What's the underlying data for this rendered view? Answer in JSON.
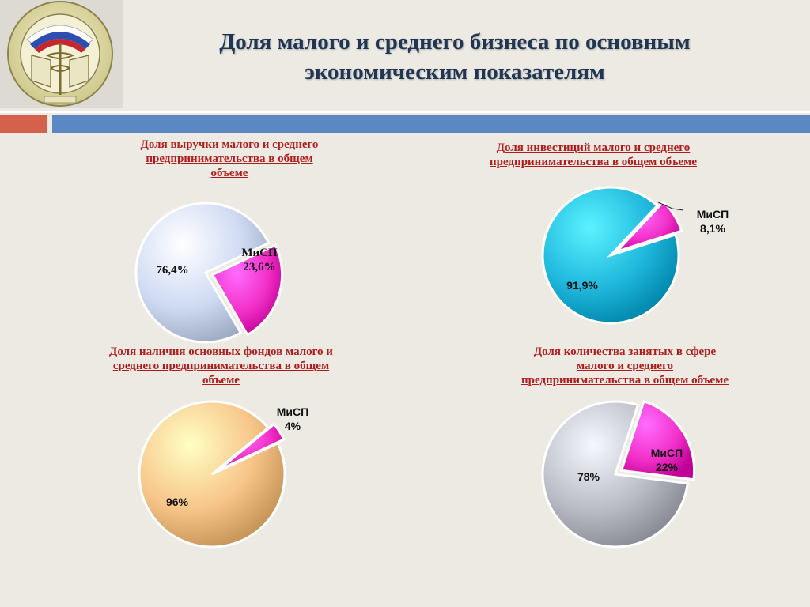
{
  "title_line1": "Доля малого и среднего бизнеса по основным",
  "title_line2": "экономическим показателям",
  "colors": {
    "accent_red": "#d4614c",
    "accent_blue": "#5b87c3",
    "chart_title": "#b21b1b",
    "misp": "#f230c8"
  },
  "chart_data": [
    {
      "type": "pie",
      "title_lines": [
        "Доля выручки малого и среднего",
        "предпринимательства в общем",
        "объеме"
      ],
      "categories": [
        "МиСП",
        ""
      ],
      "values": [
        23.6,
        76.4
      ],
      "labels": [
        "МиСП\n23,6%",
        "76,4%"
      ],
      "colors": [
        "#f230c8",
        "#cfdaf3"
      ]
    },
    {
      "type": "pie",
      "title_lines": [
        "Доля инвестиций малого и среднего",
        "предпринимательства в общем объеме"
      ],
      "categories": [
        "МиСП",
        ""
      ],
      "values": [
        8.1,
        91.9
      ],
      "labels": [
        "МиСП\n8,1%",
        "91,9%"
      ],
      "colors": [
        "#f230c8",
        "#1fb7dc"
      ]
    },
    {
      "type": "pie",
      "title_lines": [
        "Доля наличия основных фондов малого и",
        "среднего предпринимательства в общем",
        "объеме"
      ],
      "categories": [
        "МиСП",
        ""
      ],
      "values": [
        4,
        96
      ],
      "labels": [
        "МиСП\n4%",
        "96%"
      ],
      "colors": [
        "#f230c8",
        "#f7c488"
      ]
    },
    {
      "type": "pie",
      "title_lines": [
        "Доля количества занятых в сфере",
        "малого  и среднего",
        "предпринимательства в общем объеме"
      ],
      "categories": [
        "МиСП",
        ""
      ],
      "values": [
        22,
        78
      ],
      "labels": [
        "МиСП\n22%",
        "78%"
      ],
      "colors": [
        "#f230c8",
        "#b9bcc4"
      ]
    }
  ]
}
